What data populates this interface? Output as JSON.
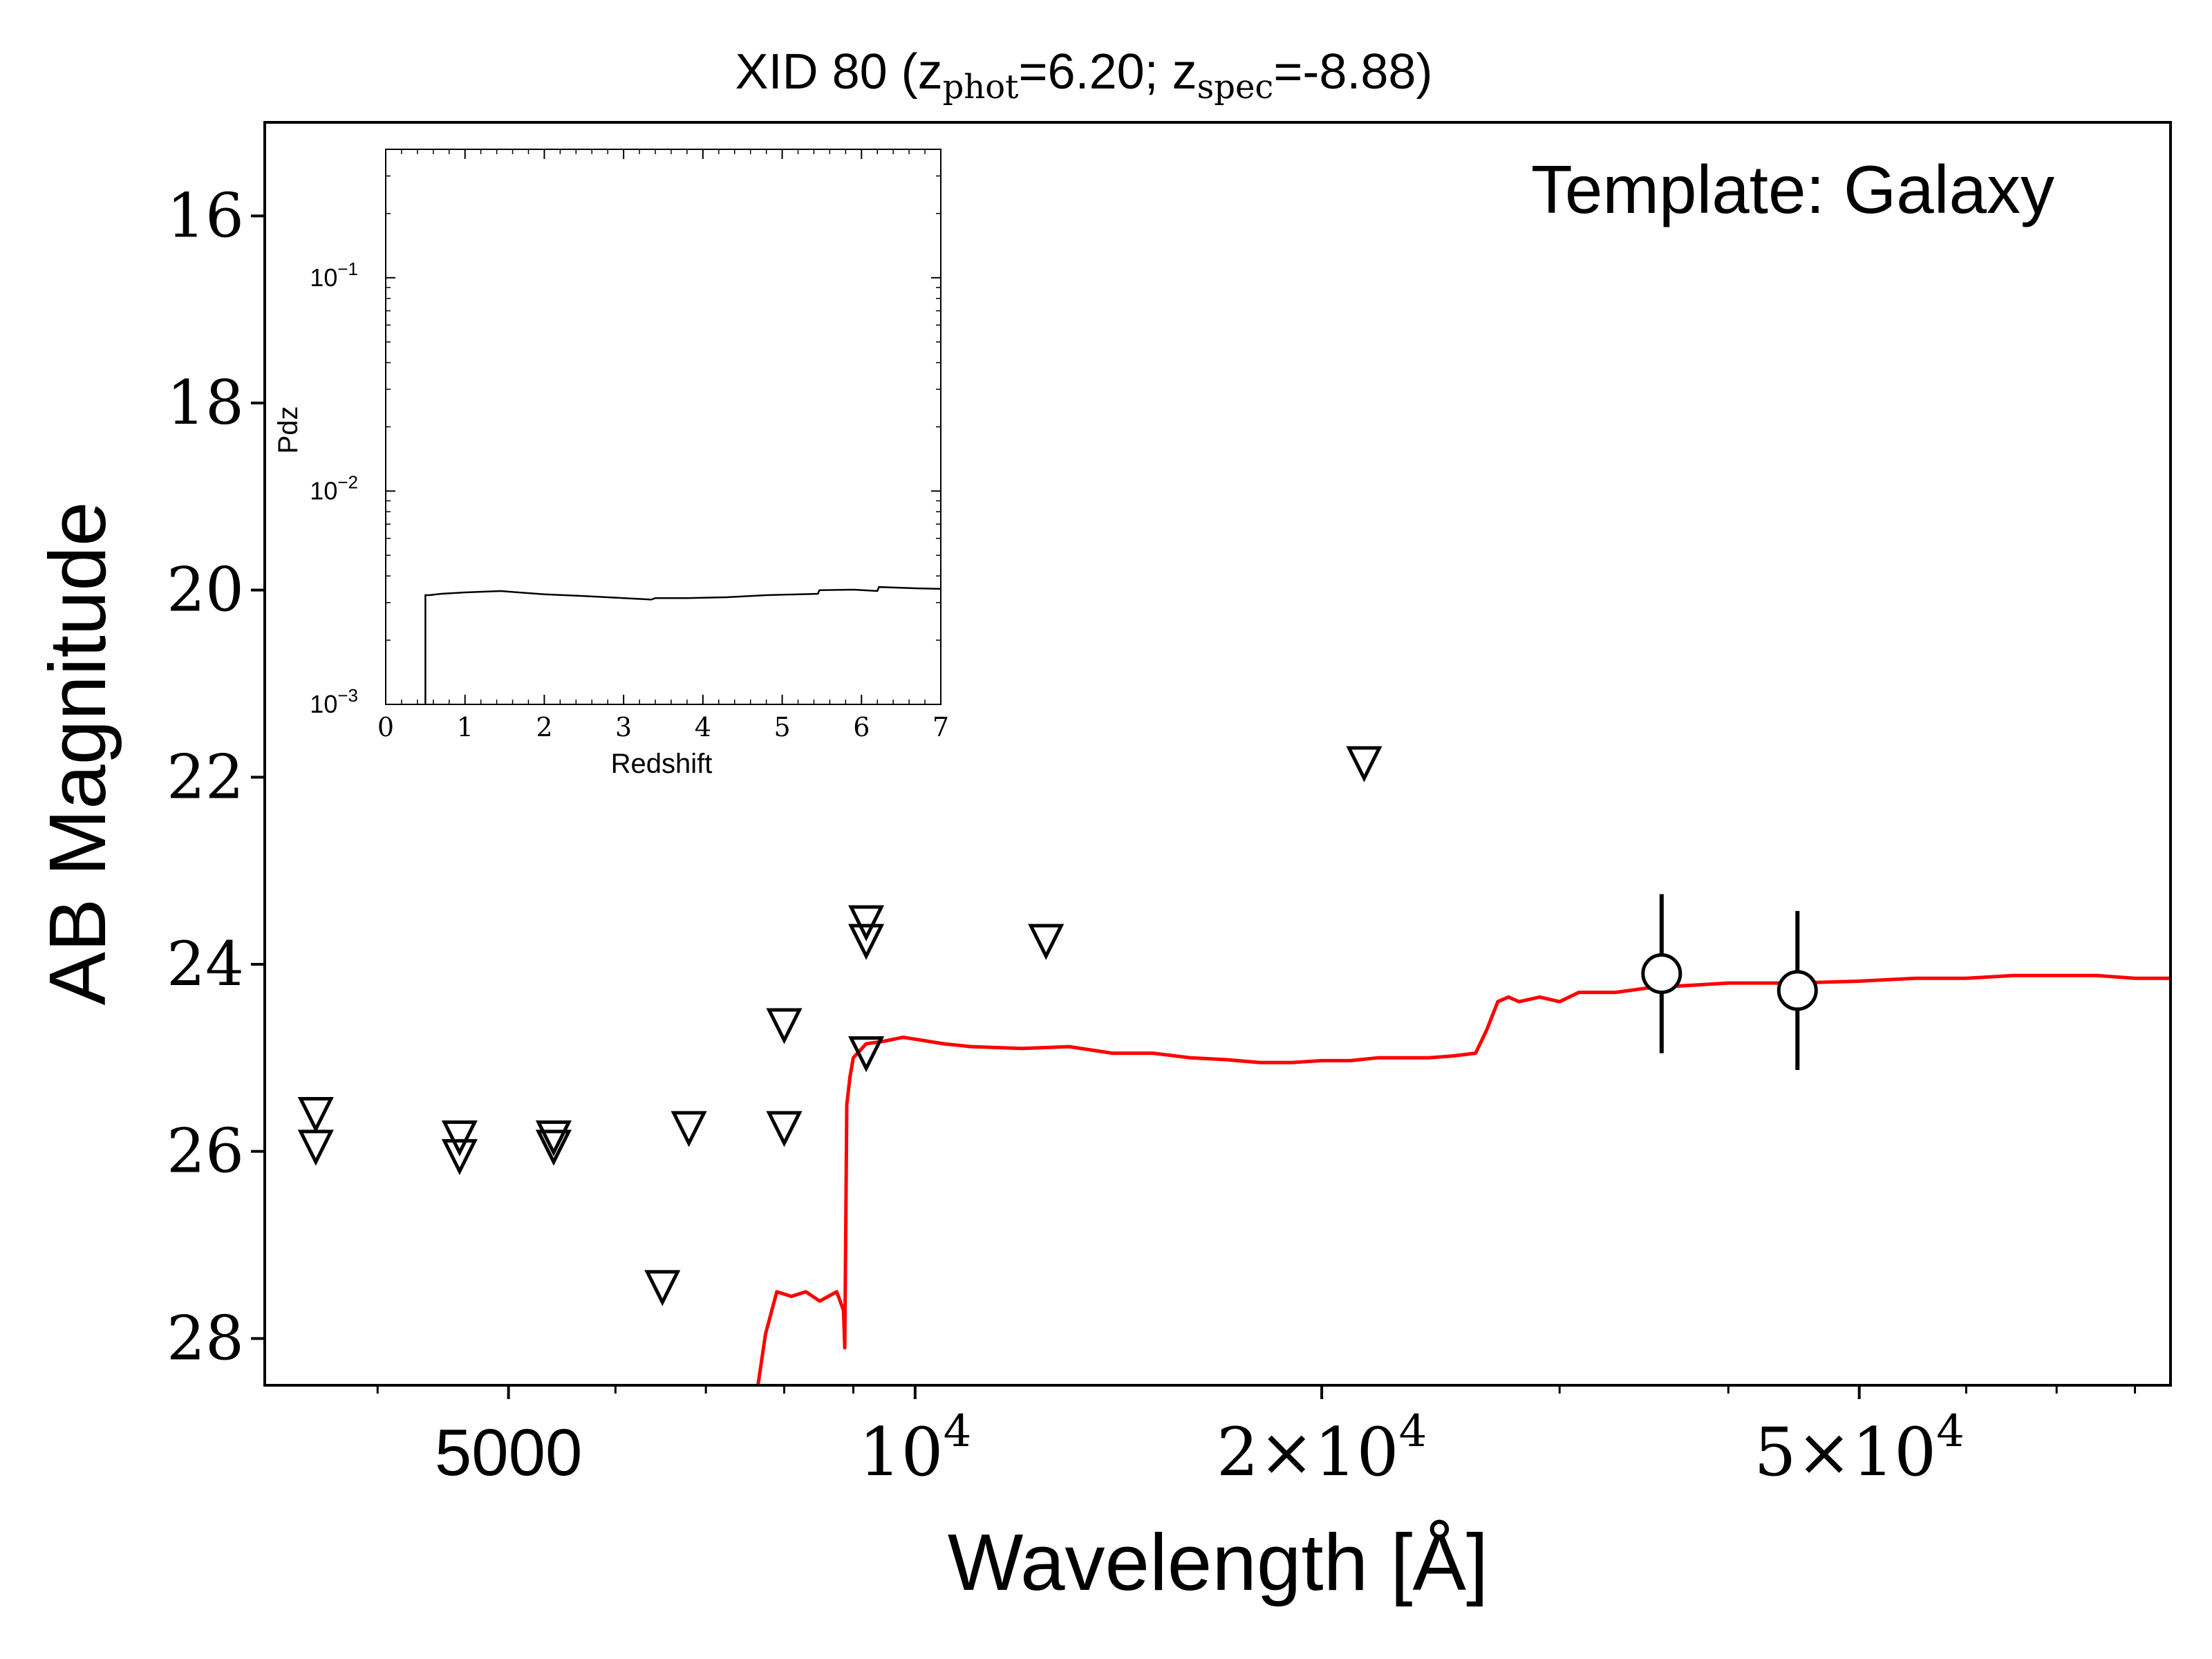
{
  "chart_data": [
    {
      "type": "scatter",
      "title": "XID 80 (z",
      "title_parts": {
        "main_prefix": "XID 80 (z",
        "sub1": "phot",
        "mid": "=6.20; z",
        "sub2": "spec",
        "suffix": "=-8.88)"
      },
      "annotation": "Template: Galaxy",
      "xlabel": "Wavelength [Å]",
      "ylabel": "AB Magnitude",
      "x_scale": "log",
      "xlim": [
        3300,
        85000
      ],
      "ylim": [
        28.5,
        15
      ],
      "y_ticks": [
        "16",
        "18",
        "20",
        "22",
        "24",
        "26",
        "28"
      ],
      "x_ticks": [
        {
          "value": 5000,
          "label": "5000"
        },
        {
          "value": 10000,
          "label": "10",
          "sup": "4"
        },
        {
          "value": 20000,
          "label": "2×10",
          "sup": "4"
        },
        {
          "value": 50000,
          "label": "5×10",
          "sup": "4"
        }
      ],
      "colors": {
        "template": "#ff0000",
        "points": "#000000"
      },
      "upper_limits": [
        {
          "x": 3600,
          "y": 25.6
        },
        {
          "x": 3600,
          "y": 25.95
        },
        {
          "x": 4600,
          "y": 25.85
        },
        {
          "x": 4600,
          "y": 26.05
        },
        {
          "x": 5400,
          "y": 25.85
        },
        {
          "x": 5400,
          "y": 25.95
        },
        {
          "x": 6500,
          "y": 27.45
        },
        {
          "x": 6800,
          "y": 25.75
        },
        {
          "x": 8000,
          "y": 24.65
        },
        {
          "x": 8000,
          "y": 25.75
        },
        {
          "x": 9200,
          "y": 23.55
        },
        {
          "x": 9200,
          "y": 23.75
        },
        {
          "x": 9200,
          "y": 24.95
        },
        {
          "x": 12500,
          "y": 23.75
        },
        {
          "x": 21500,
          "y": 21.85
        }
      ],
      "detections": [
        {
          "x": 35700,
          "y": 24.1,
          "yerr": 0.85
        },
        {
          "x": 45000,
          "y": 24.28,
          "yerr": 0.85
        }
      ],
      "template": {
        "x": [
          7650,
          7750,
          7900,
          8100,
          8300,
          8500,
          8750,
          8850,
          8870,
          8900,
          8950,
          9000,
          9200,
          9500,
          9800,
          10000,
          10500,
          11000,
          12000,
          13000,
          14000,
          15000,
          16000,
          17000,
          18000,
          19000,
          20000,
          21000,
          22000,
          23000,
          24000,
          25000,
          26000,
          26500,
          27000,
          27500,
          28000,
          29000,
          30000,
          31000,
          32000,
          33000,
          35000,
          38000,
          40000,
          45000,
          50000,
          55000,
          60000,
          65000,
          70000,
          75000,
          80000,
          85000
        ],
        "y": [
          28.5,
          27.95,
          27.5,
          27.55,
          27.5,
          27.6,
          27.5,
          27.7,
          28.1,
          25.5,
          25.2,
          25.0,
          24.85,
          24.82,
          24.78,
          24.8,
          24.85,
          24.88,
          24.9,
          24.88,
          24.95,
          24.95,
          25.0,
          25.02,
          25.05,
          25.05,
          25.03,
          25.03,
          25.0,
          25.0,
          25.0,
          24.98,
          24.95,
          24.7,
          24.4,
          24.35,
          24.4,
          24.35,
          24.4,
          24.3,
          24.3,
          24.3,
          24.25,
          24.22,
          24.2,
          24.2,
          24.18,
          24.15,
          24.15,
          24.12,
          24.12,
          24.12,
          24.15,
          24.15
        ]
      }
    },
    {
      "type": "line",
      "xlabel": "Redshift",
      "ylabel": "Pdz",
      "y_scale": "log",
      "xlim": [
        0,
        7
      ],
      "ylim": [
        0.001,
        0.4
      ],
      "x_ticks": [
        "0",
        "1",
        "2",
        "3",
        "4",
        "5",
        "6",
        "7"
      ],
      "y_ticks": [
        {
          "value": 0.1,
          "base": "10",
          "exp": "−1"
        },
        {
          "value": 0.01,
          "base": "10",
          "exp": "−2"
        },
        {
          "value": 0.001,
          "base": "10",
          "exp": "−3"
        }
      ],
      "x": [
        0.5,
        0.5,
        0.55,
        0.7,
        1.0,
        1.45,
        2.0,
        2.5,
        3.0,
        3.35,
        3.4,
        3.8,
        4.3,
        4.8,
        5.45,
        5.47,
        5.9,
        6.2,
        6.22,
        6.7,
        7.0
      ],
      "y": [
        0.001,
        0.00325,
        0.00325,
        0.0033,
        0.00335,
        0.0034,
        0.00328,
        0.00322,
        0.00315,
        0.0031,
        0.00315,
        0.00315,
        0.00318,
        0.00325,
        0.0033,
        0.00343,
        0.00345,
        0.0034,
        0.00355,
        0.0035,
        0.00348
      ]
    }
  ]
}
